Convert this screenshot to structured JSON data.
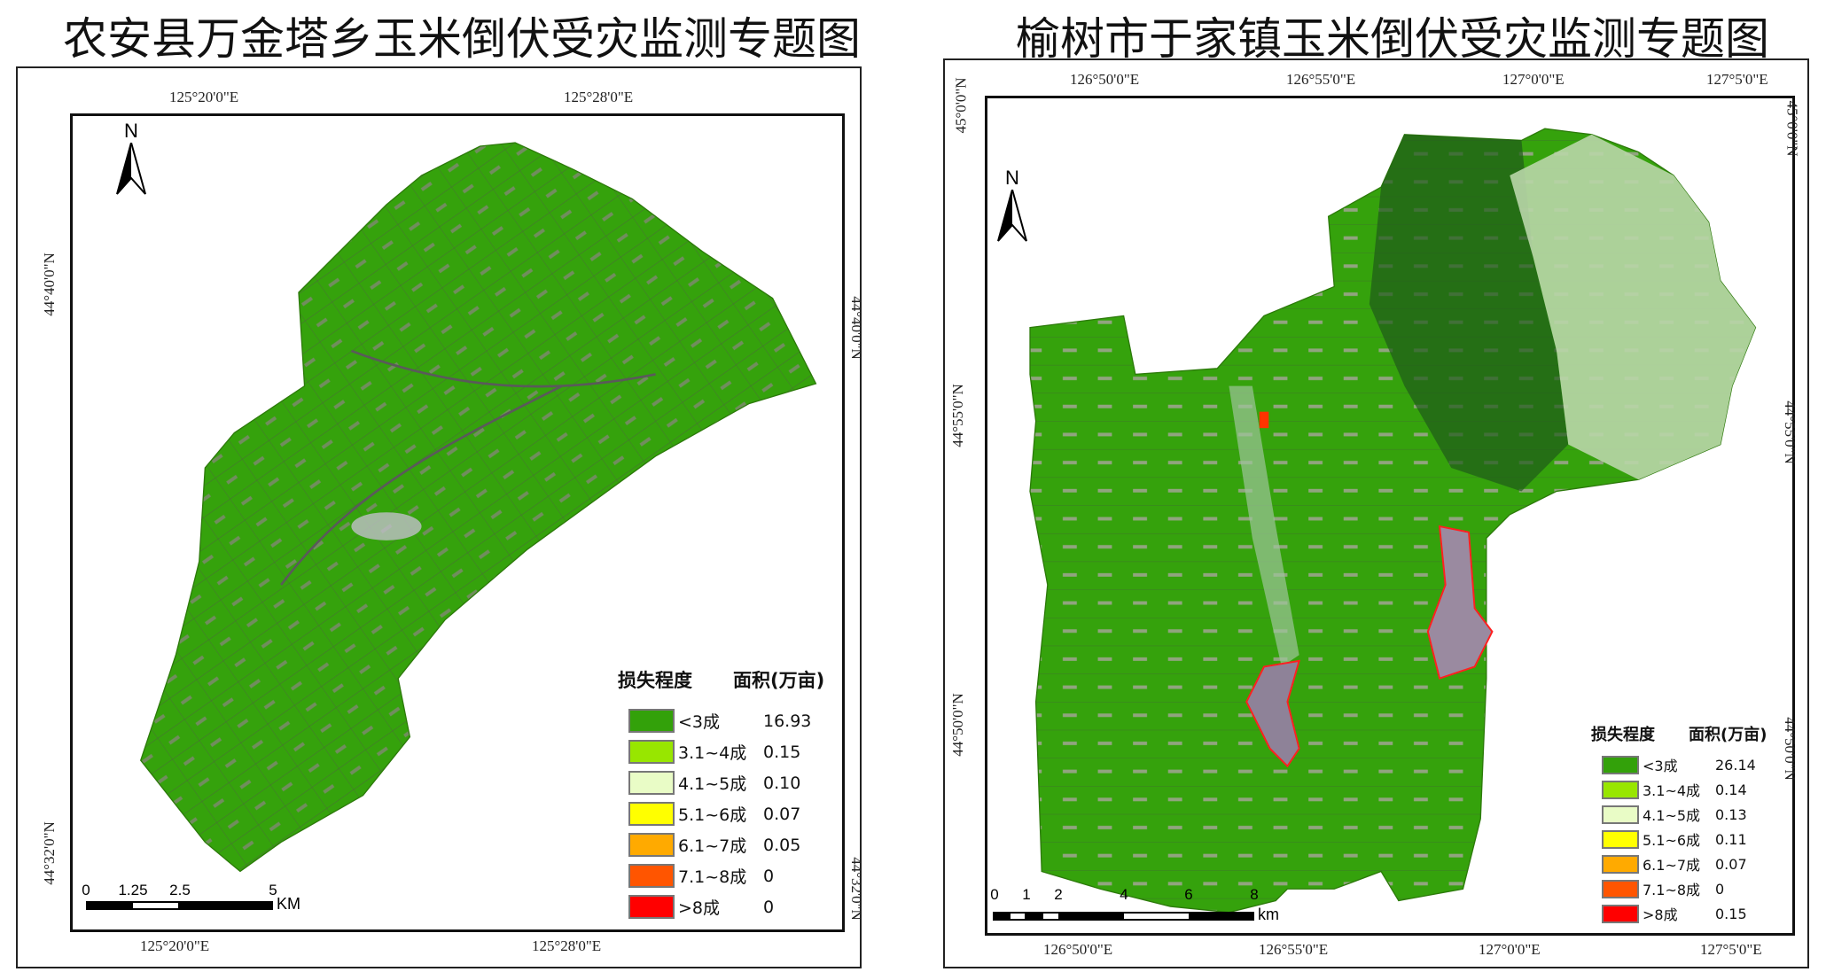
{
  "left_map": {
    "title": "农安县万金塔乡玉米倒伏受灾监测专题图",
    "north_label": "N",
    "ticks": {
      "top": [
        "125°20'0\"E",
        "125°28'0\"E"
      ],
      "bottom": [
        "125°20'0\"E",
        "125°28'0\"E"
      ],
      "left": [
        "44°40'0\"N",
        "44°32'0\"N"
      ],
      "right": [
        "44°40'0\"N",
        "44°32'0\"N"
      ]
    },
    "scale_bar": {
      "labels": [
        "0",
        "1.25",
        "2.5",
        "5"
      ],
      "unit": "KM"
    },
    "legend": {
      "header_class": "损失程度",
      "header_area": "面积(万亩)",
      "items": [
        {
          "label": "<3成",
          "value": "16.93",
          "color": "#33a10a"
        },
        {
          "label": "3.1~4成",
          "value": "0.15",
          "color": "#98e600"
        },
        {
          "label": "4.1~5成",
          "value": "0.10",
          "color": "#e9fcc6"
        },
        {
          "label": "5.1~6成",
          "value": "0.07",
          "color": "#ffff00"
        },
        {
          "label": "6.1~7成",
          "value": "0.05",
          "color": "#ffaa00"
        },
        {
          "label": "7.1~8成",
          "value": "0",
          "color": "#ff5500"
        },
        {
          "label": ">8成",
          "value": "0",
          "color": "#ff0000"
        }
      ]
    }
  },
  "right_map": {
    "title": "榆树市于家镇玉米倒伏受灾监测专题图",
    "north_label": "N",
    "ticks": {
      "top": [
        "126°50'0\"E",
        "126°55'0\"E",
        "127°0'0\"E",
        "127°5'0\"E"
      ],
      "bottom": [
        "126°50'0\"E",
        "126°55'0\"E",
        "127°0'0\"E",
        "127°5'0\"E"
      ],
      "left": [
        "45°0'0\"N",
        "44°55'0\"N",
        "44°50'0\"N"
      ],
      "right": [
        "45°0'0\"N",
        "44°55'0\"N",
        "44°50'0\"N"
      ]
    },
    "scale_bar": {
      "labels": [
        "0",
        "1",
        "2",
        "4",
        "6",
        "8"
      ],
      "unit": "km"
    },
    "legend": {
      "header_class": "损失程度",
      "header_area": "面积(万亩)",
      "items": [
        {
          "label": "<3成",
          "value": "26.14",
          "color": "#33a10a"
        },
        {
          "label": "3.1~4成",
          "value": "0.14",
          "color": "#98e600"
        },
        {
          "label": "4.1~5成",
          "value": "0.13",
          "color": "#e9fcc6"
        },
        {
          "label": "5.1~6成",
          "value": "0.11",
          "color": "#ffff00"
        },
        {
          "label": "6.1~7成",
          "value": "0.07",
          "color": "#ffaa00"
        },
        {
          "label": "7.1~8成",
          "value": "0",
          "color": "#ff5500"
        },
        {
          "label": ">8成",
          "value": "0.15",
          "color": "#ff0000"
        }
      ]
    }
  }
}
